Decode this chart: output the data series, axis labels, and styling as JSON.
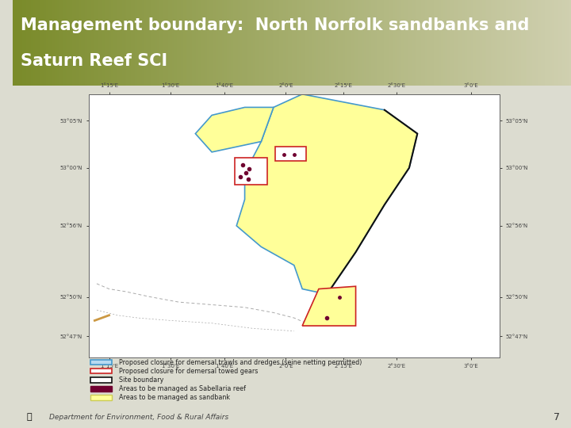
{
  "title_line1": "Management boundary:  North Norfolk sandbanks and",
  "title_line2": "Saturn Reef SCI",
  "title_bg_color_left": "#7a8b2a",
  "title_bg_color_right": "#d0d0b0",
  "title_text_color": "#ffffff",
  "title_fontsize": 15,
  "slide_bg": "#dcdcd0",
  "map_bg": "#ffffff",
  "page_number": "7",
  "footer_text": "Department for Environment, Food & Rural Affairs",
  "legend_items": [
    {
      "label": "Proposed closure for demersal trawls and dredges (seine netting permitted)",
      "facecolor": "#b8daf0",
      "edgecolor": "#4499cc",
      "linewidth": 1.2
    },
    {
      "label": "Proposed closure for demersal towed gears",
      "facecolor": "#ffffff",
      "edgecolor": "#cc2222",
      "linewidth": 1.2
    },
    {
      "label": "Site boundary",
      "facecolor": "#ffffff",
      "edgecolor": "#111111",
      "linewidth": 1.2
    },
    {
      "label": "Areas to be managed as Sabellaria reef",
      "facecolor": "#700030",
      "edgecolor": "#700030",
      "linewidth": 1
    },
    {
      "label": "Areas to be managed as sandbank",
      "facecolor": "#ffff99",
      "edgecolor": "#cccc55",
      "linewidth": 1
    }
  ],
  "main_shape_color": "#ffff99",
  "main_shape_edge": "#4499cc",
  "black_edge_color": "#111111",
  "red_box_color": "#cc2222",
  "dark_dot_color": "#700030",
  "coastline_color": "#aaaaaa",
  "map_frame_color": "#666666",
  "left_bar_color": "#7a8b2a",
  "xtick_labels": [
    "1°15'E",
    "1°30'E",
    "1°40'E",
    "2°0'E",
    "2°15'E",
    "2°30'E",
    "3°0'E"
  ],
  "ytick_labels": [
    "52°47'N",
    "52°50'N",
    "52°56'N",
    "53°00'N",
    "53°05'N"
  ]
}
